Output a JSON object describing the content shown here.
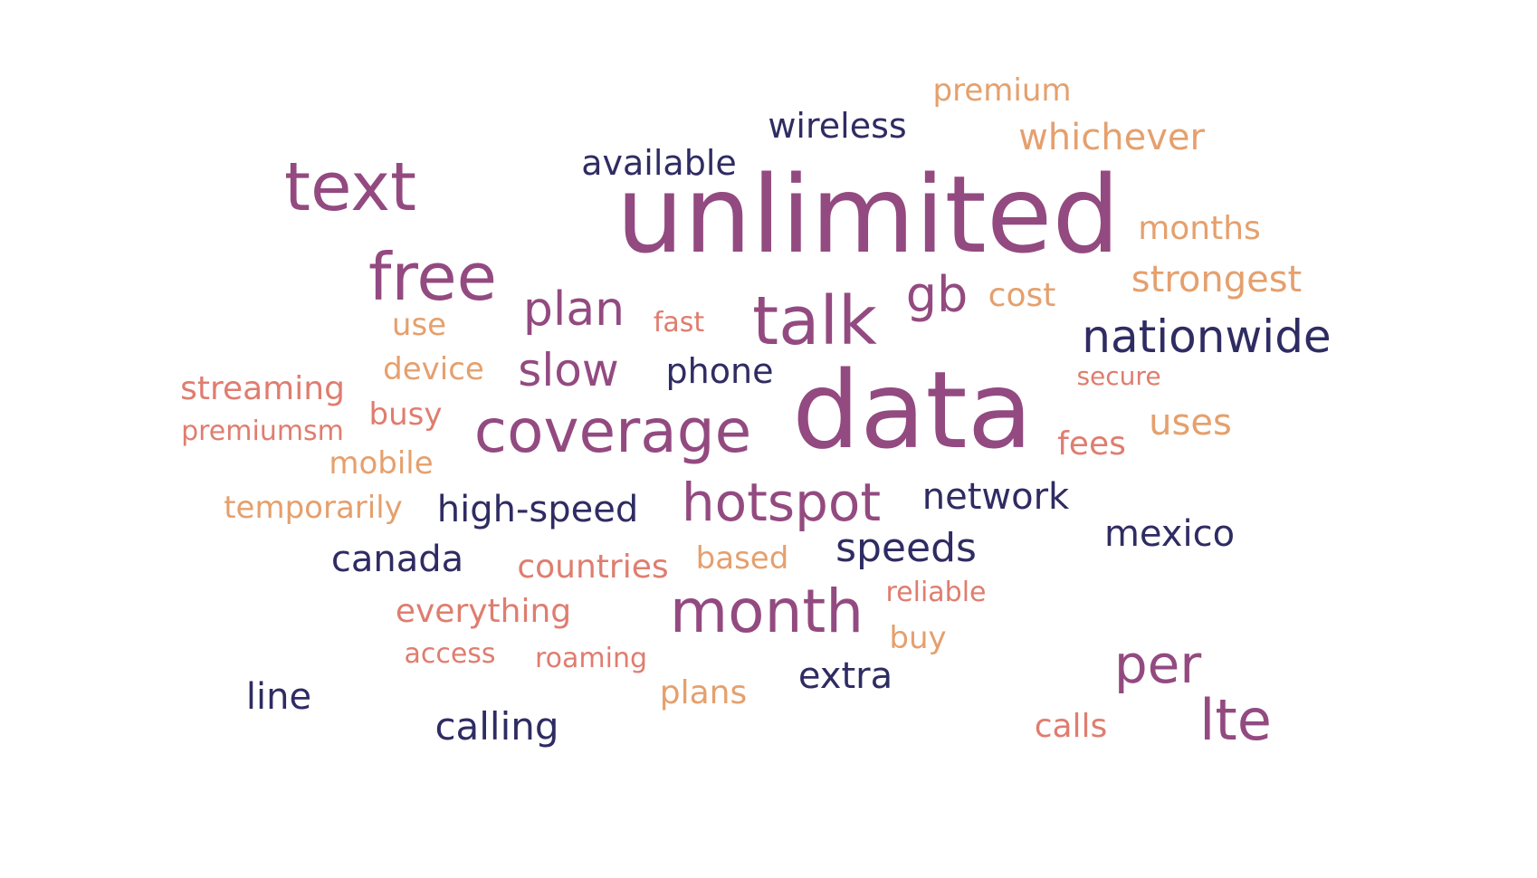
{
  "colors": {
    "dark": "#2f2c63",
    "purple": "#934a80",
    "coral": "#df7d6f",
    "orange": "#e5a06d",
    "background": "#ffffff"
  },
  "words": {
    "unlimited": "unlimited",
    "data": "data",
    "text": "text",
    "free": "free",
    "talk": "talk",
    "coverage": "coverage",
    "month": "month",
    "hotspot": "hotspot",
    "per": "per",
    "lte": "lte",
    "plan": "plan",
    "slow": "slow",
    "gb": "gb",
    "nationwide": "nationwide",
    "wireless": "wireless",
    "available": "available",
    "phone": "phone",
    "high_speed": "high-speed",
    "network": "network",
    "speeds": "speeds",
    "mexico": "mexico",
    "canada": "canada",
    "extra": "extra",
    "line": "line",
    "calling": "calling",
    "premium": "premium",
    "whichever": "whichever",
    "months": "months",
    "strongest": "strongest",
    "cost": "cost",
    "use": "use",
    "fast": "fast",
    "device": "device",
    "secure": "secure",
    "streaming": "streaming",
    "busy": "busy",
    "premiumsm": "premiumsm",
    "uses": "uses",
    "fees": "fees",
    "mobile": "mobile",
    "temporarily": "temporarily",
    "based": "based",
    "countries": "countries",
    "reliable": "reliable",
    "everything": "everything",
    "buy": "buy",
    "access": "access",
    "roaming": "roaming",
    "plans": "plans",
    "calls": "calls"
  }
}
